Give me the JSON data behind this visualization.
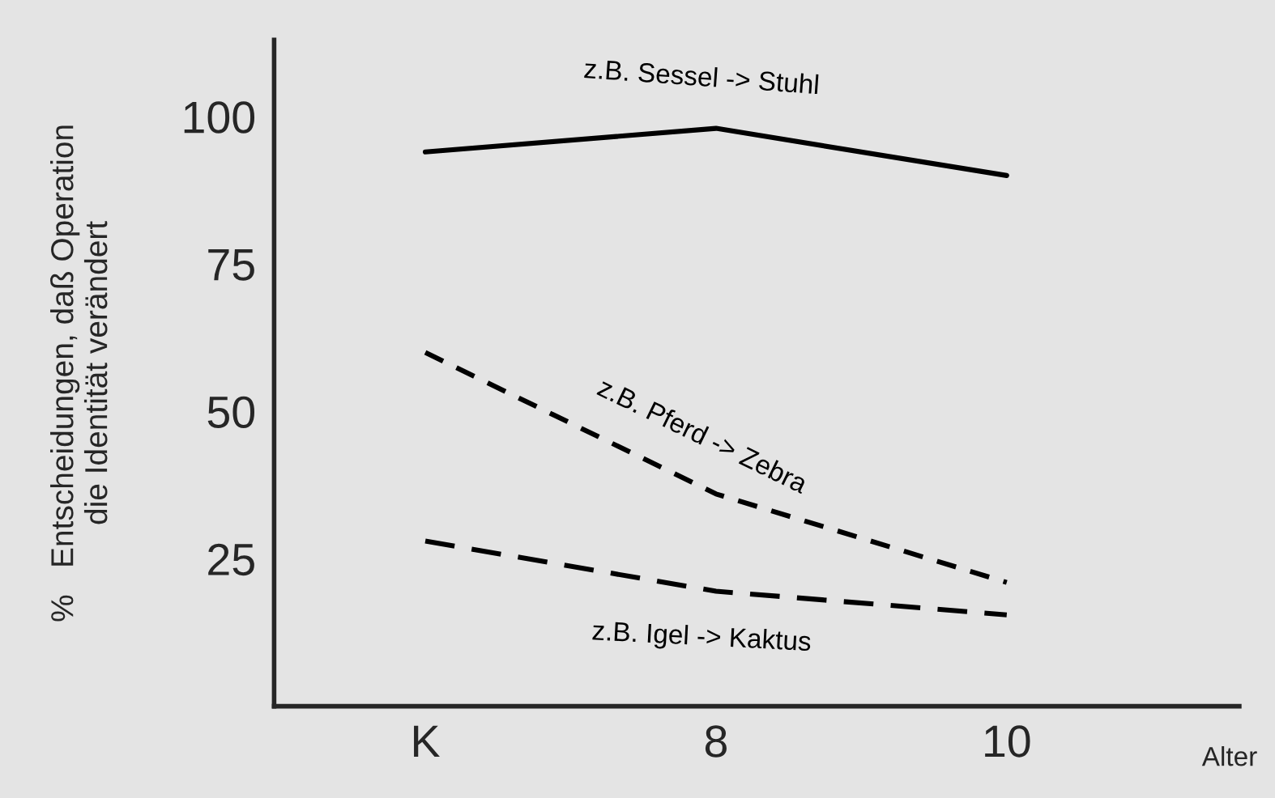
{
  "chart_data": {
    "type": "line",
    "xlabel": "Alter",
    "ylabel": "%   Entscheidungen, daß Operation\ndie Identität verändert",
    "categories": [
      "K",
      "8",
      "10"
    ],
    "ylim": [
      0,
      113
    ],
    "yticks": [
      25,
      50,
      75,
      100
    ],
    "grid": false,
    "legend": false,
    "marker": "none",
    "series": [
      {
        "name": "z.B. Sessel -> Stuhl",
        "color": "#000000",
        "line_style": "solid",
        "values": [
          94,
          98,
          90
        ]
      },
      {
        "name": "z.B. Pferd -> Zebra",
        "color": "#000000",
        "line_style": "dashed",
        "values": [
          60,
          36,
          21
        ]
      },
      {
        "name": "z.B. Igel -> Kaktus",
        "color": "#000000",
        "line_style": "dashed",
        "values": [
          28,
          19.5,
          15.5
        ]
      }
    ]
  }
}
